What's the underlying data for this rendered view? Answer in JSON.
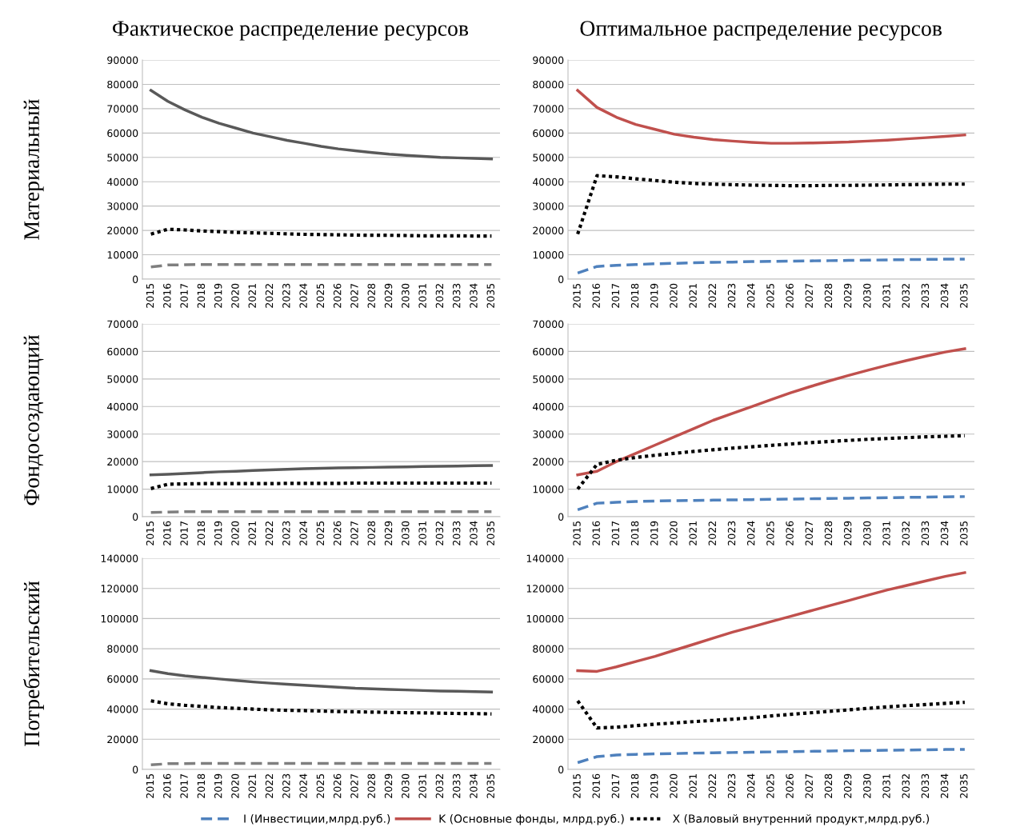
{
  "chart_data": [
    {
      "type": "line",
      "title": "Фактическое распределение ресурсов",
      "ylabel": "Материальный",
      "categories": [
        "2015",
        "2016",
        "2017",
        "2018",
        "2019",
        "2020",
        "2021",
        "2022",
        "2023",
        "2024",
        "2025",
        "2026",
        "2027",
        "2028",
        "2029",
        "2030",
        "2031",
        "2032",
        "2033",
        "2034",
        "2035"
      ],
      "ylim": [
        0,
        90000
      ],
      "yticks": [
        0,
        10000,
        20000,
        30000,
        40000,
        50000,
        60000,
        70000,
        80000,
        90000
      ],
      "grid": "y",
      "marker": "none",
      "series": [
        {
          "color": "#7f7f7f",
          "line_style": "dashed",
          "values": [
            5000,
            5800,
            5900,
            6000,
            6000,
            6000,
            6000,
            6000,
            6000,
            6000,
            6000,
            6000,
            6000,
            6000,
            6000,
            6000,
            6000,
            6000,
            6000,
            6000,
            6000
          ]
        },
        {
          "color": "#595959",
          "line_style": "solid",
          "values": [
            77500,
            73000,
            69500,
            66500,
            64000,
            62000,
            60000,
            58500,
            57000,
            55800,
            54500,
            53500,
            52700,
            52000,
            51300,
            50800,
            50400,
            50000,
            49800,
            49600,
            49400
          ]
        },
        {
          "color": "#000000",
          "line_style": "dotted",
          "values": [
            18500,
            20500,
            20200,
            19800,
            19500,
            19200,
            19000,
            18800,
            18600,
            18400,
            18300,
            18200,
            18100,
            18000,
            18000,
            17900,
            17800,
            17800,
            17800,
            17700,
            17700
          ]
        }
      ]
    },
    {
      "type": "line",
      "title": "Оптимальное распределение ресурсов",
      "categories": [
        "2015",
        "2016",
        "2017",
        "2018",
        "2019",
        "2020",
        "2021",
        "2022",
        "2023",
        "2024",
        "2025",
        "2026",
        "2027",
        "2028",
        "2029",
        "2030",
        "2031",
        "2032",
        "2033",
        "2034",
        "2035"
      ],
      "ylim": [
        0,
        90000
      ],
      "yticks": [
        0,
        10000,
        20000,
        30000,
        40000,
        50000,
        60000,
        70000,
        80000,
        90000
      ],
      "grid": "y",
      "marker": "none",
      "series": [
        {
          "color": "#4f81bd",
          "line_style": "dashed",
          "values": [
            2500,
            5200,
            5700,
            6000,
            6300,
            6500,
            6700,
            6900,
            7000,
            7200,
            7300,
            7400,
            7500,
            7600,
            7700,
            7800,
            7900,
            8000,
            8100,
            8200,
            8200
          ]
        },
        {
          "color": "#c0504d",
          "line_style": "solid",
          "values": [
            77500,
            70500,
            66500,
            63500,
            61500,
            59500,
            58300,
            57300,
            56700,
            56200,
            55800,
            55800,
            55900,
            56100,
            56300,
            56700,
            57100,
            57600,
            58100,
            58600,
            59200
          ]
        },
        {
          "color": "#000000",
          "line_style": "dotted",
          "values": [
            18500,
            42500,
            42000,
            41200,
            40500,
            39800,
            39300,
            39000,
            38800,
            38600,
            38500,
            38400,
            38400,
            38500,
            38500,
            38600,
            38700,
            38800,
            38900,
            39000,
            39000
          ]
        }
      ]
    },
    {
      "type": "line",
      "ylabel": "Фондосоздающий",
      "categories": [
        "2015",
        "2016",
        "2017",
        "2018",
        "2019",
        "2020",
        "2021",
        "2022",
        "2023",
        "2024",
        "2025",
        "2026",
        "2027",
        "2028",
        "2029",
        "2030",
        "2031",
        "2032",
        "2033",
        "2034",
        "2035"
      ],
      "ylim": [
        0,
        70000
      ],
      "yticks": [
        0,
        10000,
        20000,
        30000,
        40000,
        50000,
        60000,
        70000
      ],
      "grid": "y",
      "marker": "none",
      "series": [
        {
          "color": "#7f7f7f",
          "line_style": "dashed",
          "values": [
            1500,
            1700,
            1800,
            1800,
            1800,
            1800,
            1800,
            1800,
            1800,
            1800,
            1800,
            1800,
            1800,
            1800,
            1800,
            1800,
            1800,
            1800,
            1800,
            1800,
            1800
          ]
        },
        {
          "color": "#595959",
          "line_style": "solid",
          "values": [
            15200,
            15400,
            15700,
            16000,
            16300,
            16500,
            16800,
            17000,
            17200,
            17400,
            17600,
            17700,
            17800,
            17900,
            18000,
            18100,
            18200,
            18300,
            18400,
            18500,
            18600
          ]
        },
        {
          "color": "#000000",
          "line_style": "dotted",
          "values": [
            10200,
            11800,
            11900,
            12000,
            12000,
            12000,
            12000,
            12000,
            12100,
            12100,
            12100,
            12100,
            12200,
            12200,
            12200,
            12200,
            12200,
            12200,
            12200,
            12200,
            12200
          ]
        }
      ]
    },
    {
      "type": "line",
      "categories": [
        "2015",
        "2016",
        "2017",
        "2018",
        "2019",
        "2020",
        "2021",
        "2022",
        "2023",
        "2024",
        "2025",
        "2026",
        "2027",
        "2028",
        "2029",
        "2030",
        "2031",
        "2032",
        "2033",
        "2034",
        "2035"
      ],
      "ylim": [
        0,
        70000
      ],
      "yticks": [
        0,
        10000,
        20000,
        30000,
        40000,
        50000,
        60000,
        70000
      ],
      "grid": "y",
      "marker": "none",
      "series": [
        {
          "color": "#4f81bd",
          "line_style": "dashed",
          "values": [
            2500,
            4900,
            5200,
            5500,
            5700,
            5800,
            5900,
            6000,
            6100,
            6200,
            6300,
            6400,
            6500,
            6600,
            6700,
            6800,
            6900,
            7000,
            7100,
            7200,
            7300
          ]
        },
        {
          "color": "#c0504d",
          "line_style": "solid",
          "values": [
            15200,
            16500,
            20000,
            23000,
            26000,
            29000,
            32000,
            35000,
            37500,
            40000,
            42500,
            45000,
            47200,
            49300,
            51300,
            53200,
            55000,
            56700,
            58300,
            59800,
            61000
          ]
        },
        {
          "color": "#000000",
          "line_style": "dotted",
          "values": [
            10000,
            19000,
            20500,
            21500,
            22300,
            23000,
            23700,
            24300,
            24900,
            25400,
            25900,
            26400,
            26900,
            27300,
            27700,
            28100,
            28400,
            28700,
            29000,
            29200,
            29400
          ]
        }
      ]
    },
    {
      "type": "line",
      "ylabel": "Потребительский",
      "categories": [
        "2015",
        "2016",
        "2017",
        "2018",
        "2019",
        "2020",
        "2021",
        "2022",
        "2023",
        "2024",
        "2025",
        "2026",
        "2027",
        "2028",
        "2029",
        "2030",
        "2031",
        "2032",
        "2033",
        "2034",
        "2035"
      ],
      "ylim": [
        0,
        140000
      ],
      "yticks": [
        0,
        20000,
        40000,
        60000,
        80000,
        100000,
        120000,
        140000
      ],
      "grid": "y",
      "marker": "none",
      "series": [
        {
          "color": "#7f7f7f",
          "line_style": "dashed",
          "values": [
            3000,
            3800,
            3900,
            4000,
            4000,
            4000,
            4000,
            4000,
            4000,
            4000,
            4000,
            4000,
            4000,
            4000,
            4000,
            4000,
            4000,
            4000,
            4000,
            4000,
            4000
          ]
        },
        {
          "color": "#595959",
          "line_style": "solid",
          "values": [
            65500,
            63500,
            62000,
            61000,
            60000,
            59000,
            58000,
            57200,
            56500,
            55800,
            55200,
            54500,
            53800,
            53400,
            53000,
            52700,
            52300,
            52000,
            51800,
            51600,
            51300
          ]
        },
        {
          "color": "#000000",
          "line_style": "dotted",
          "values": [
            45500,
            43500,
            42500,
            41800,
            41000,
            40500,
            40000,
            39500,
            39200,
            39000,
            38700,
            38400,
            38200,
            38000,
            37800,
            37600,
            37500,
            37300,
            37100,
            37000,
            36800
          ]
        }
      ]
    },
    {
      "type": "line",
      "categories": [
        "2015",
        "2016",
        "2017",
        "2018",
        "2019",
        "2020",
        "2021",
        "2022",
        "2023",
        "2024",
        "2025",
        "2026",
        "2027",
        "2028",
        "2029",
        "2030",
        "2031",
        "2032",
        "2033",
        "2034",
        "2035"
      ],
      "ylim": [
        0,
        140000
      ],
      "yticks": [
        0,
        20000,
        40000,
        60000,
        80000,
        100000,
        120000,
        140000
      ],
      "grid": "y",
      "marker": "none",
      "legend": "bottom",
      "series": [
        {
          "name": "I (Инвестиции,млрд.руб.)",
          "color": "#4f81bd",
          "line_style": "dashed",
          "values": [
            4500,
            8500,
            9500,
            10000,
            10300,
            10500,
            10800,
            11000,
            11200,
            11400,
            11600,
            11800,
            12000,
            12200,
            12400,
            12500,
            12700,
            12900,
            13000,
            13200,
            13300
          ]
        },
        {
          "name": "K (Основные фонды, млрд.руб.)",
          "color": "#c0504d",
          "line_style": "solid",
          "values": [
            65500,
            65000,
            68000,
            71500,
            75000,
            79000,
            83000,
            87000,
            91000,
            94500,
            98000,
            101500,
            105000,
            108500,
            112000,
            115500,
            119000,
            122000,
            125000,
            128000,
            130500
          ]
        },
        {
          "name": "X (Валовый внутренний продукт,млрд.руб.)",
          "color": "#000000",
          "line_style": "dotted",
          "values": [
            45500,
            27500,
            28000,
            29000,
            30000,
            30800,
            31700,
            32500,
            33300,
            34200,
            35500,
            36500,
            37500,
            38500,
            39500,
            40500,
            41500,
            42300,
            43000,
            43800,
            44500
          ]
        }
      ]
    }
  ]
}
